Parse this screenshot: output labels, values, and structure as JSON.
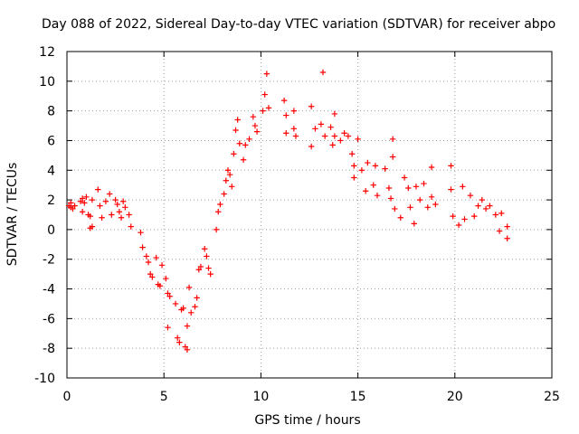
{
  "chart_data": {
    "type": "scatter",
    "title": "Day 088 of 2022, Sidereal Day-to-day VTEC variation (SDTVAR) for receiver abpo",
    "xlabel": "GPS time / hours",
    "ylabel": "SDTVAR / TECUs",
    "xlim": [
      0,
      25
    ],
    "ylim": [
      -10,
      12
    ],
    "xticks": [
      0,
      5,
      10,
      15,
      20,
      25
    ],
    "yticks": [
      -10,
      -8,
      -6,
      -4,
      -2,
      0,
      2,
      4,
      6,
      8,
      10,
      12
    ],
    "grid": true,
    "marker": "+",
    "color": "#ff0000",
    "series": [
      {
        "name": "SDTVAR",
        "points": [
          [
            0.1,
            1.6
          ],
          [
            0.2,
            1.5
          ],
          [
            0.3,
            1.4
          ],
          [
            0.4,
            1.6
          ],
          [
            0.2,
            1.8
          ],
          [
            0.7,
            1.9
          ],
          [
            0.8,
            2.1
          ],
          [
            0.9,
            1.8
          ],
          [
            0.8,
            1.2
          ],
          [
            1.0,
            2.2
          ],
          [
            1.1,
            1.0
          ],
          [
            1.2,
            0.9
          ],
          [
            1.3,
            2.0
          ],
          [
            1.2,
            0.1
          ],
          [
            1.3,
            0.2
          ],
          [
            1.6,
            2.7
          ],
          [
            1.7,
            1.6
          ],
          [
            1.8,
            0.8
          ],
          [
            2.0,
            1.9
          ],
          [
            2.2,
            2.4
          ],
          [
            2.3,
            1.0
          ],
          [
            2.5,
            2.0
          ],
          [
            2.6,
            1.7
          ],
          [
            2.7,
            1.2
          ],
          [
            2.8,
            0.8
          ],
          [
            2.9,
            1.9
          ],
          [
            3.0,
            1.5
          ],
          [
            3.2,
            1.0
          ],
          [
            3.3,
            0.2
          ],
          [
            3.8,
            -0.2
          ],
          [
            3.9,
            -1.2
          ],
          [
            4.1,
            -1.8
          ],
          [
            4.2,
            -2.2
          ],
          [
            4.3,
            -3.0
          ],
          [
            4.4,
            -3.2
          ],
          [
            4.6,
            -1.9
          ],
          [
            4.7,
            -3.7
          ],
          [
            4.8,
            -3.8
          ],
          [
            4.9,
            -2.4
          ],
          [
            5.1,
            -3.3
          ],
          [
            5.2,
            -4.3
          ],
          [
            5.3,
            -4.5
          ],
          [
            5.2,
            -6.6
          ],
          [
            5.6,
            -5.0
          ],
          [
            5.7,
            -7.3
          ],
          [
            5.8,
            -7.6
          ],
          [
            5.9,
            -5.4
          ],
          [
            6.0,
            -5.3
          ],
          [
            6.1,
            -7.9
          ],
          [
            6.2,
            -8.1
          ],
          [
            6.2,
            -6.5
          ],
          [
            6.3,
            -3.9
          ],
          [
            6.4,
            -5.6
          ],
          [
            6.6,
            -5.2
          ],
          [
            6.7,
            -4.6
          ],
          [
            6.8,
            -2.7
          ],
          [
            6.9,
            -2.5
          ],
          [
            7.1,
            -1.3
          ],
          [
            7.2,
            -1.8
          ],
          [
            7.3,
            -2.6
          ],
          [
            7.4,
            -3.0
          ],
          [
            7.7,
            0.0
          ],
          [
            7.8,
            1.2
          ],
          [
            7.9,
            1.7
          ],
          [
            8.1,
            2.4
          ],
          [
            8.2,
            3.3
          ],
          [
            8.3,
            4.0
          ],
          [
            8.4,
            3.7
          ],
          [
            8.5,
            2.9
          ],
          [
            8.6,
            5.1
          ],
          [
            8.7,
            6.7
          ],
          [
            8.8,
            7.4
          ],
          [
            8.9,
            5.8
          ],
          [
            9.1,
            4.7
          ],
          [
            9.2,
            5.7
          ],
          [
            9.4,
            6.1
          ],
          [
            9.6,
            7.6
          ],
          [
            9.7,
            7.0
          ],
          [
            9.8,
            6.6
          ],
          [
            10.1,
            8.0
          ],
          [
            10.2,
            9.1
          ],
          [
            10.3,
            10.5
          ],
          [
            10.4,
            8.2
          ],
          [
            11.2,
            8.7
          ],
          [
            11.3,
            7.7
          ],
          [
            11.3,
            6.5
          ],
          [
            11.7,
            8.0
          ],
          [
            11.7,
            6.8
          ],
          [
            11.8,
            6.3
          ],
          [
            12.6,
            8.3
          ],
          [
            12.6,
            5.6
          ],
          [
            12.8,
            6.8
          ],
          [
            13.1,
            7.1
          ],
          [
            13.2,
            10.6
          ],
          [
            13.3,
            6.3
          ],
          [
            13.6,
            6.9
          ],
          [
            13.7,
            5.7
          ],
          [
            13.8,
            6.3
          ],
          [
            13.8,
            7.8
          ],
          [
            14.1,
            6.0
          ],
          [
            14.3,
            6.5
          ],
          [
            14.5,
            6.3
          ],
          [
            14.7,
            5.1
          ],
          [
            14.8,
            4.3
          ],
          [
            14.8,
            3.5
          ],
          [
            15.0,
            6.1
          ],
          [
            15.2,
            4.0
          ],
          [
            15.4,
            2.6
          ],
          [
            15.5,
            4.5
          ],
          [
            15.8,
            3.0
          ],
          [
            15.9,
            4.3
          ],
          [
            16.0,
            2.3
          ],
          [
            16.4,
            4.1
          ],
          [
            16.6,
            2.8
          ],
          [
            16.7,
            2.1
          ],
          [
            16.8,
            4.9
          ],
          [
            16.8,
            6.1
          ],
          [
            16.9,
            1.4
          ],
          [
            17.2,
            0.8
          ],
          [
            17.4,
            3.5
          ],
          [
            17.6,
            2.8
          ],
          [
            17.7,
            1.5
          ],
          [
            17.9,
            0.4
          ],
          [
            18.0,
            2.9
          ],
          [
            18.2,
            2.0
          ],
          [
            18.4,
            3.1
          ],
          [
            18.6,
            1.5
          ],
          [
            18.8,
            2.2
          ],
          [
            18.8,
            4.2
          ],
          [
            19.0,
            1.7
          ],
          [
            19.8,
            4.3
          ],
          [
            19.8,
            2.7
          ],
          [
            19.9,
            0.9
          ],
          [
            20.2,
            0.3
          ],
          [
            20.4,
            2.9
          ],
          [
            20.5,
            0.7
          ],
          [
            20.8,
            2.3
          ],
          [
            21.0,
            0.9
          ],
          [
            21.2,
            1.6
          ],
          [
            21.4,
            2.0
          ],
          [
            21.6,
            1.4
          ],
          [
            21.8,
            1.6
          ],
          [
            22.1,
            1.0
          ],
          [
            22.3,
            -0.1
          ],
          [
            22.4,
            1.1
          ],
          [
            22.7,
            0.2
          ],
          [
            22.7,
            -0.6
          ]
        ]
      }
    ]
  }
}
